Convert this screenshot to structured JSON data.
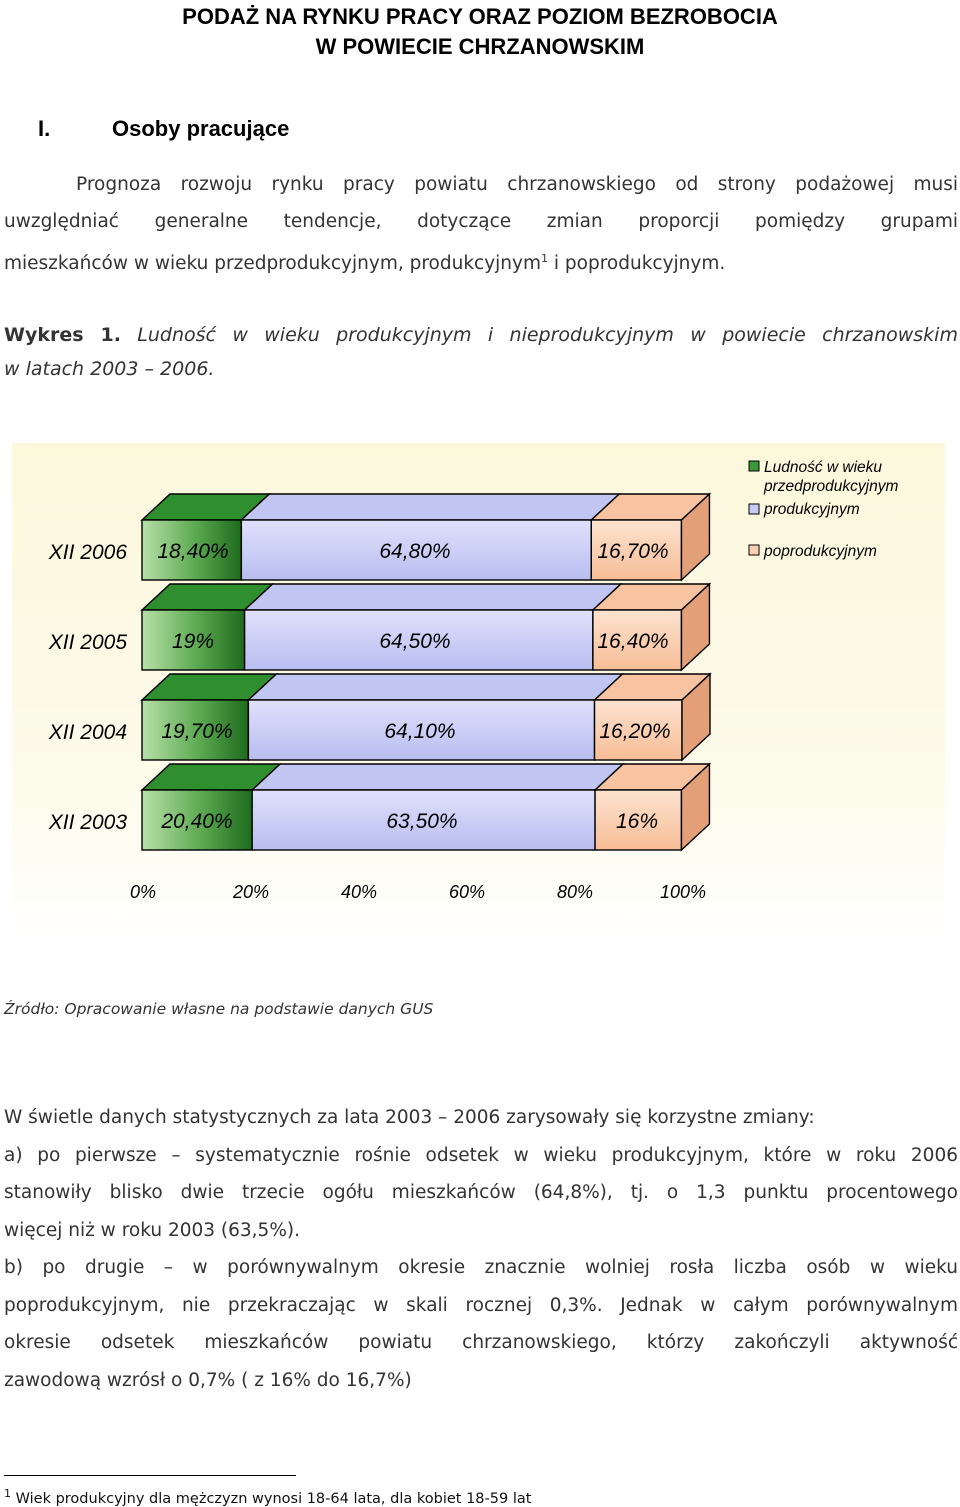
{
  "title": {
    "line1": "PODAŻ NA RYNKU PRACY ORAZ POZIOM BEZROBOCIA",
    "line2": "W POWIECIE CHRZANOWSKIM"
  },
  "section": {
    "number": "I.",
    "heading": "Osoby pracujące"
  },
  "intro": {
    "line1": "Prognoza rozwoju rynku pracy powiatu chrzanowskiego od strony podażowej musi",
    "line2": "uwzględniać generalne tendencje, dotyczące zmian proporcji pomiędzy grupami",
    "line3_pre": "mieszkańców w wieku przedprodukcyjnym, produkcyjnym",
    "line3_sup": "1",
    "line3_post": " i poprodukcyjnym."
  },
  "caption": {
    "label": "Wykres 1.",
    "text_line1": " Ludność w wieku produkcyjnym i nieprodukcyjnym w powiecie chrzanowskim",
    "text_line2": "w latach 2003 – 2006."
  },
  "chart_data": {
    "type": "bar",
    "orientation": "horizontal",
    "stacked": true,
    "style": "3d",
    "categories": [
      "XII 2006",
      "XII 2005",
      "XII 2004",
      "XII 2003"
    ],
    "series": [
      {
        "name": "Ludność w wieku przedprodukcyjnym",
        "values": [
          18.4,
          19,
          19.7,
          20.4
        ],
        "labels": [
          "18,40%",
          "19%",
          "19,70%",
          "20,40%"
        ],
        "color": "#2e8b2e"
      },
      {
        "name": "produkcyjnym",
        "values": [
          64.8,
          64.5,
          64.1,
          63.5
        ],
        "labels": [
          "64,80%",
          "64,50%",
          "64,10%",
          "63,50%"
        ],
        "color": "#c8ccf4"
      },
      {
        "name": "poprodukcyjnym",
        "values": [
          16.7,
          16.4,
          16.2,
          16
        ],
        "labels": [
          "16,70%",
          "16,40%",
          "16,20%",
          "16%"
        ],
        "color": "#fbd0b2"
      }
    ],
    "xlim": [
      0,
      100
    ],
    "xticks": [
      "0%",
      "20%",
      "40%",
      "60%",
      "80%",
      "100%"
    ],
    "legend": {
      "position": "top-right",
      "line1": "Ludność w wieku",
      "line2": "przedprodukcyjnym",
      "line3": "produkcyjnym",
      "line4": "poprodukcyjnym"
    }
  },
  "source": "Źródło: Opracowanie własne na podstawie danych GUS",
  "body": {
    "line1": "W świetle danych statystycznych za lata 2003 – 2006 zarysowały się korzystne zmiany:",
    "line2": "a) po pierwsze – systematycznie rośnie odsetek w wieku produkcyjnym, które w roku 2006",
    "line3": "stanowiły blisko dwie trzecie ogółu mieszkańców (64,8%), tj. o 1,3 punktu procentowego",
    "line4": "więcej niż w roku 2003 (63,5%).",
    "line5": "b) po drugie – w porównywalnym okresie znacznie wolniej rosła liczba osób w wieku",
    "line6": "poprodukcyjnym, nie przekraczając w skali rocznej 0,3%. Jednak w całym porównywalnym",
    "line7": "okresie odsetek mieszkańców powiatu chrzanowskiego, którzy zakończyli aktywność",
    "line8": "zawodową wzrósł o 0,7% ( z 16% do 16,7%)"
  },
  "footnote": {
    "mark": "1",
    "text": " Wiek produkcyjny dla mężczyzn wynosi 18-64 lata, dla kobiet 18-59 lat"
  }
}
